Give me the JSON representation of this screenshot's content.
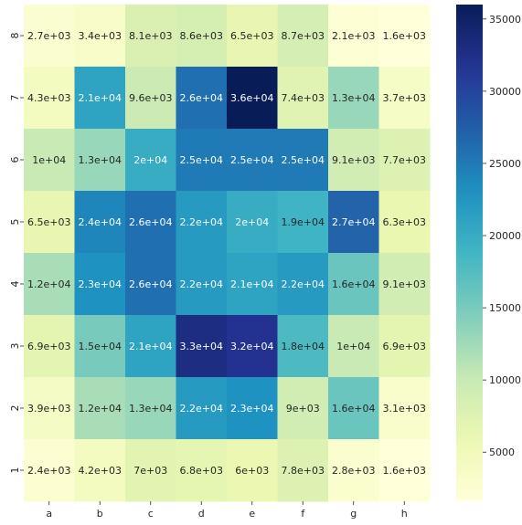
{
  "chart_data": {
    "type": "heatmap",
    "title": "",
    "xlabel": "",
    "ylabel": "",
    "x": [
      "a",
      "b",
      "c",
      "d",
      "e",
      "f",
      "g",
      "h"
    ],
    "y": [
      "8",
      "7",
      "6",
      "5",
      "4",
      "3",
      "2",
      "1"
    ],
    "values": [
      [
        2700,
        3400,
        8100,
        8600,
        6500,
        8700,
        2100,
        1600
      ],
      [
        4300,
        21000,
        9600,
        26000,
        36000,
        7400,
        13000,
        3700
      ],
      [
        10000,
        13000,
        20000,
        25000,
        25000,
        25000,
        9100,
        7700
      ],
      [
        6500,
        24000,
        26000,
        22000,
        20000,
        19000,
        27000,
        6300
      ],
      [
        12000,
        23000,
        26000,
        22000,
        21000,
        22000,
        16000,
        9100
      ],
      [
        6900,
        15000,
        21000,
        33000,
        32000,
        18000,
        10000,
        6900
      ],
      [
        3900,
        12000,
        13000,
        22000,
        23000,
        9000,
        16000,
        3100
      ],
      [
        2400,
        4200,
        7000,
        6800,
        6000,
        7800,
        2800,
        1600
      ]
    ],
    "labels": [
      [
        "2.7e+03",
        "3.4e+03",
        "8.1e+03",
        "8.6e+03",
        "6.5e+03",
        "8.7e+03",
        "2.1e+03",
        "1.6e+03"
      ],
      [
        "4.3e+03",
        "2.1e+04",
        "9.6e+03",
        "2.6e+04",
        "3.6e+04",
        "7.4e+03",
        "1.3e+04",
        "3.7e+03"
      ],
      [
        "1e+04",
        "1.3e+04",
        "2e+04",
        "2.5e+04",
        "2.5e+04",
        "2.5e+04",
        "9.1e+03",
        "7.7e+03"
      ],
      [
        "6.5e+03",
        "2.4e+04",
        "2.6e+04",
        "2.2e+04",
        "2e+04",
        "1.9e+04",
        "2.7e+04",
        "6.3e+03"
      ],
      [
        "1.2e+04",
        "2.3e+04",
        "2.6e+04",
        "2.2e+04",
        "2.1e+04",
        "2.2e+04",
        "1.6e+04",
        "9.1e+03"
      ],
      [
        "6.9e+03",
        "1.5e+04",
        "2.1e+04",
        "3.3e+04",
        "3.2e+04",
        "1.8e+04",
        "1e+04",
        "6.9e+03"
      ],
      [
        "3.9e+03",
        "1.2e+04",
        "1.3e+04",
        "2.2e+04",
        "2.3e+04",
        "9e+03",
        "1.6e+04",
        "3.1e+03"
      ],
      [
        "2.4e+03",
        "4.2e+03",
        "7e+03",
        "6.8e+03",
        "6e+03",
        "7.8e+03",
        "2.8e+03",
        "1.6e+03"
      ]
    ],
    "colorbar": {
      "min": 1600,
      "max": 36000,
      "ticks": [
        5000,
        10000,
        15000,
        20000,
        25000,
        30000,
        35000
      ],
      "tick_labels": [
        "5000",
        "10000",
        "15000",
        "20000",
        "25000",
        "30000",
        "35000"
      ],
      "colormap": "YlGnBu"
    },
    "grid": false,
    "legend": "colorbar-right"
  }
}
